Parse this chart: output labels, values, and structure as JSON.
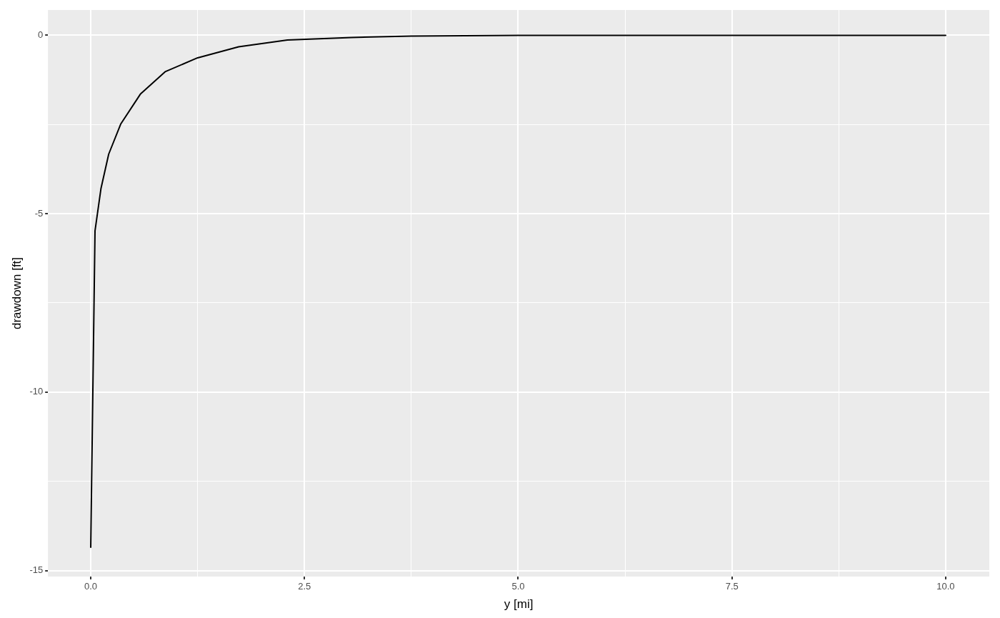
{
  "chart_data": {
    "type": "line",
    "xlabel": "y [mi]",
    "ylabel": "drawdown [ft]",
    "series": [
      {
        "color": "#000000",
        "x": [
          0,
          0.05,
          0.12,
          0.21,
          0.35,
          0.58,
          0.87,
          1.25,
          1.73,
          2.3,
          3.05,
          3.75,
          5,
          7.5,
          10
        ],
        "values": [
          -14.35,
          -5.48,
          -4.29,
          -3.33,
          -2.49,
          -1.65,
          -1.02,
          -0.63,
          -0.32,
          -0.13,
          -0.06,
          -0.02,
          0,
          0,
          0
        ]
      }
    ],
    "xlim": [
      -0.5,
      10.51
    ],
    "ylim": [
      -15.17,
      0.71
    ],
    "xticks": [
      {
        "value": 0,
        "label": "0.0"
      },
      {
        "value": 1.25,
        "label": null
      },
      {
        "value": 2.5,
        "label": "2.5"
      },
      {
        "value": 3.75,
        "label": null
      },
      {
        "value": 5,
        "label": "5.0"
      },
      {
        "value": 6.25,
        "label": null
      },
      {
        "value": 7.5,
        "label": "7.5"
      },
      {
        "value": 8.75,
        "label": null
      },
      {
        "value": 10,
        "label": "10.0"
      }
    ],
    "yticks": [
      -15,
      {
        "value": -12.5,
        "label": null
      },
      -10,
      {
        "value": -7.5,
        "label": null
      },
      -5,
      {
        "value": -2.5,
        "label": null
      },
      0
    ],
    "grid": true,
    "legend": false,
    "marker": "none",
    "line_style": "solid"
  }
}
